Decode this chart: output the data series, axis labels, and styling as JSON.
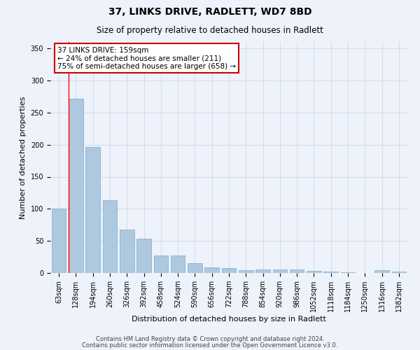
{
  "title1": "37, LINKS DRIVE, RADLETT, WD7 8BD",
  "title2": "Size of property relative to detached houses in Radlett",
  "xlabel": "Distribution of detached houses by size in Radlett",
  "ylabel": "Number of detached properties",
  "categories": [
    "63sqm",
    "128sqm",
    "194sqm",
    "260sqm",
    "326sqm",
    "392sqm",
    "458sqm",
    "524sqm",
    "590sqm",
    "656sqm",
    "722sqm",
    "788sqm",
    "854sqm",
    "920sqm",
    "986sqm",
    "1052sqm",
    "1118sqm",
    "1184sqm",
    "1250sqm",
    "1316sqm",
    "1382sqm"
  ],
  "values": [
    100,
    272,
    196,
    114,
    68,
    54,
    27,
    27,
    15,
    9,
    8,
    4,
    5,
    5,
    5,
    3,
    2,
    1,
    0,
    4,
    2
  ],
  "bar_color": "#aec8e0",
  "bar_edge_color": "#7aaac8",
  "grid_color": "#d0d8e8",
  "background_color": "#eef2fa",
  "annotation_text": "37 LINKS DRIVE: 159sqm\n← 24% of detached houses are smaller (211)\n75% of semi-detached houses are larger (658) →",
  "annotation_box_color": "#ffffff",
  "annotation_box_edge": "#cc0000",
  "red_line_bin": 1,
  "ylim": [
    0,
    360
  ],
  "yticks": [
    0,
    50,
    100,
    150,
    200,
    250,
    300,
    350
  ],
  "footer1": "Contains HM Land Registry data © Crown copyright and database right 2024.",
  "footer2": "Contains public sector information licensed under the Open Government Licence v3.0.",
  "title1_fontsize": 10,
  "title2_fontsize": 8.5,
  "xlabel_fontsize": 8,
  "ylabel_fontsize": 8,
  "tick_fontsize": 7,
  "annot_fontsize": 7.5,
  "footer_fontsize": 6
}
